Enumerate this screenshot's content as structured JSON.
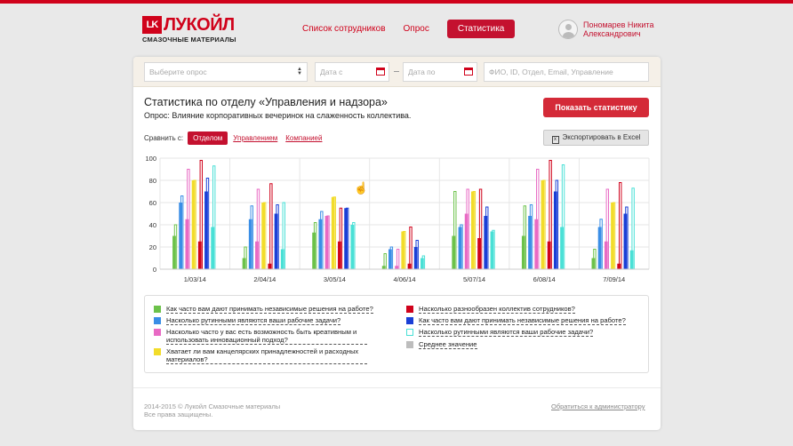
{
  "header": {
    "logo_mark": "LK",
    "logo_name": "ЛУКОЙЛ",
    "logo_sub": "СМАЗОЧНЫЕ МАТЕРИАЛЫ",
    "nav": [
      "Список сотрудников",
      "Опрос"
    ],
    "nav_active": "Статистика",
    "user_name": "Пономарев Никита Александрович"
  },
  "filters": {
    "survey_placeholder": "Выберите опрос",
    "date_from_placeholder": "Дата с",
    "date_to_placeholder": "Дата по",
    "search_placeholder": "ФИО, ID, Отдел, Email, Управление"
  },
  "main": {
    "title": "Статистика по отделу «Управления и надзора»",
    "subtitle": "Опрос: Влияние корпоративных вечеринок на слаженность коллектива.",
    "show_button": "Показать статистику",
    "compare_label": "Сравнить с:",
    "compare_active": "Отделом",
    "compare_links": [
      "Управлением",
      "Компанией"
    ],
    "export_button": "Экспортировать в Excel"
  },
  "colors": [
    "#6cc24a",
    "#3a8ee6",
    "#e86ac4",
    "#f2dc2a",
    "#d0021b",
    "#1a3fd6",
    "#49e0d6",
    "#bdbdbd"
  ],
  "chart_data": {
    "type": "bar",
    "categories": [
      "1/03/14",
      "2/04/14",
      "3/05/14",
      "4/06/14",
      "5/07/14",
      "6/08/14",
      "7/09/14"
    ],
    "ylim": [
      0,
      100
    ],
    "yticks": [
      0,
      20,
      40,
      60,
      80,
      100
    ],
    "grid": true,
    "series": [
      {
        "name": "Как часто вам дают принимать независимые решения на работе?",
        "values": [
          30,
          10,
          33,
          3,
          30,
          30,
          10
        ],
        "outline": [
          40,
          20,
          42,
          14,
          70,
          57,
          18
        ]
      },
      {
        "name": "Насколько рутинными являются ваши рабочие задачи?",
        "values": [
          60,
          45,
          45,
          18,
          38,
          48,
          38
        ],
        "outline": [
          66,
          57,
          52,
          20,
          40,
          58,
          45
        ]
      },
      {
        "name": "Насколько часто у вас есть возможность быть креативным и использовать инновационный подход?",
        "values": [
          45,
          25,
          48,
          3,
          50,
          45,
          25
        ],
        "outline": [
          90,
          72,
          48,
          18,
          72,
          90,
          72
        ]
      },
      {
        "name": "Хватает ли вам канцелярских принадлежностей и расходных материалов?",
        "values": [
          80,
          60,
          65,
          34,
          70,
          80,
          60
        ],
        "outline": [
          80,
          60,
          65,
          34,
          70,
          80,
          60
        ]
      },
      {
        "name": "Насколько разнообразен коллектив сотрудников?",
        "values": [
          25,
          5,
          25,
          5,
          28,
          25,
          5
        ],
        "outline": [
          98,
          77,
          55,
          38,
          72,
          98,
          78
        ]
      },
      {
        "name": "Как часто вам дают принимать независимые решения на работе?",
        "values": [
          70,
          50,
          55,
          20,
          48,
          70,
          50
        ],
        "outline": [
          82,
          58,
          55,
          26,
          56,
          80,
          56
        ]
      },
      {
        "name": "Насколько рутинными являются ваши рабочие задачи?",
        "values": [
          38,
          18,
          40,
          10,
          34,
          38,
          17
        ],
        "outline": [
          93,
          60,
          42,
          12,
          35,
          94,
          73
        ]
      },
      {
        "name": "Среднее значение",
        "values": [
          0,
          0,
          0,
          0,
          0,
          0,
          0
        ],
        "outline": [
          0,
          0,
          0,
          0,
          0,
          0,
          0
        ]
      }
    ]
  },
  "footer": {
    "copyright_line1": "2014-2015 © Лукойл Смазочные материалы",
    "copyright_line2": "Все права защищены.",
    "admin_link": "Обратиться к администратору"
  }
}
